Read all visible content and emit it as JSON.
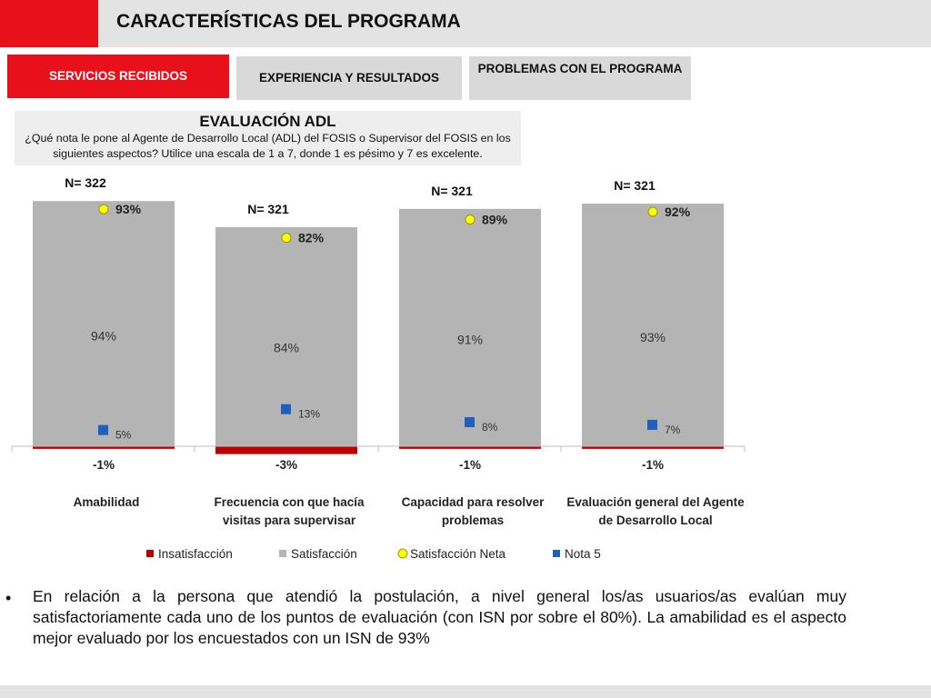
{
  "header": {
    "title": "CARACTERÍSTICAS DEL PROGRAMA",
    "accent": "#e8111b"
  },
  "tabs": [
    {
      "label": "SERVICIOS RECIBIDOS",
      "active": true
    },
    {
      "label": "EXPERIENCIA Y RESULTADOS",
      "active": false
    },
    {
      "label": "PROBLEMAS CON EL PROGRAMA",
      "active": false
    }
  ],
  "question": {
    "title": "EVALUACIÓN ADL",
    "text": "¿Qué nota le pone al Agente de Desarrollo Local (ADL) del FOSIS o Supervisor del FOSIS en los siguientes aspectos? Utilice una escala de 1 a 7, donde 1 es pésimo y 7 es excelente."
  },
  "chart_data": {
    "type": "bar",
    "categories": [
      [
        "Amabilidad"
      ],
      [
        "Frecuencia con que hacía",
        "visitas para supervisar"
      ],
      [
        "Capacidad para resolver",
        "problemas"
      ],
      [
        "Evaluación general del Agente",
        "de Desarrollo Local"
      ]
    ],
    "n_labels": [
      "N= 322",
      "N= 321",
      "N= 321",
      "N= 321"
    ],
    "series": [
      {
        "name": "Insatisfacción",
        "values": [
          -1,
          -3,
          -1,
          -1
        ],
        "labels": [
          "-1%",
          "-3%",
          "-1%",
          "-1%"
        ],
        "color": "#c00000"
      },
      {
        "name": "Satisfacción",
        "values": [
          94,
          84,
          91,
          93
        ],
        "labels": [
          "94%",
          "84%",
          "91%",
          "93%"
        ],
        "color": "#b4b4b4"
      },
      {
        "name": "Satisfacción Neta",
        "values": [
          93,
          82,
          89,
          92
        ],
        "labels": [
          "93%",
          "82%",
          "89%",
          "92%"
        ],
        "color": "#ffff00"
      },
      {
        "name": "Nota 5",
        "values": [
          5,
          13,
          8,
          7
        ],
        "labels": [
          "5%",
          "13%",
          "8%",
          "7%"
        ],
        "color": "#1f5fbf"
      }
    ],
    "legend_position": "bottom"
  },
  "summary": {
    "bullet": "•",
    "text": "En relación a la persona que atendió la postulación, a nivel general los/as usuarios/as evalúan muy satisfactoriamente cada uno de los puntos de evaluación (con ISN por sobre el 80%). La amabilidad es el aspecto mejor evaluado por los encuestados con un ISN de 93%"
  }
}
